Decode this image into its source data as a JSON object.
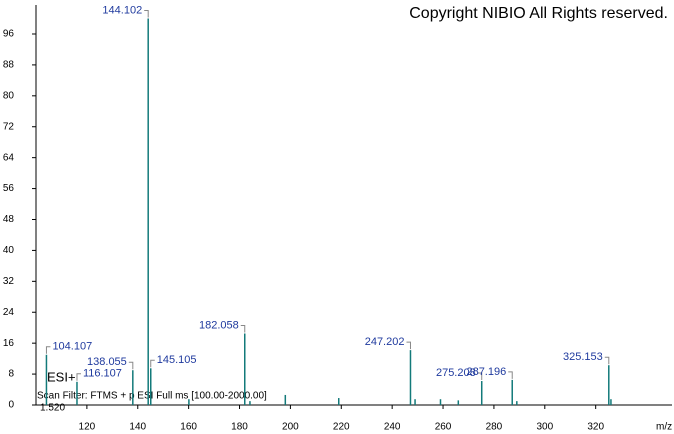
{
  "chart_data": {
    "type": "spectrum",
    "copyright": "Copyright NIBIO All Rights reserved.",
    "ion_mode": "ESI+",
    "scan_filter": "Scan Filter: FTMS + p ESI Full ms [100.00-2000.00]",
    "retention_time": "1.520",
    "x_label": "m/z",
    "x": [
      104.107,
      116.107,
      138.055,
      144.102,
      145.105,
      160.1,
      182.058,
      184.1,
      198.0,
      219.0,
      247.202,
      249.0,
      259.0,
      266.0,
      275.208,
      287.196,
      289.0,
      325.153,
      326.0
    ],
    "values": [
      13,
      6,
      9,
      100,
      9.5,
      1.5,
      18.5,
      1,
      2.6,
      1.8,
      14.2,
      1.5,
      1.5,
      1.2,
      6.2,
      6.5,
      1,
      10.3,
      1.5
    ],
    "labeled": [
      true,
      true,
      true,
      true,
      true,
      false,
      true,
      false,
      false,
      false,
      true,
      false,
      false,
      false,
      true,
      true,
      false,
      true,
      false
    ],
    "color": "#137a7a",
    "label_color": "#1f3a9e",
    "xlim": [
      100,
      350
    ],
    "ylim": [
      0,
      103.5
    ],
    "xticks": [
      120,
      140,
      160,
      180,
      200,
      220,
      240,
      260,
      280,
      300,
      320
    ],
    "yticks": [
      0,
      8,
      16,
      24,
      32,
      40,
      48,
      56,
      64,
      72,
      80,
      88,
      96
    ]
  }
}
